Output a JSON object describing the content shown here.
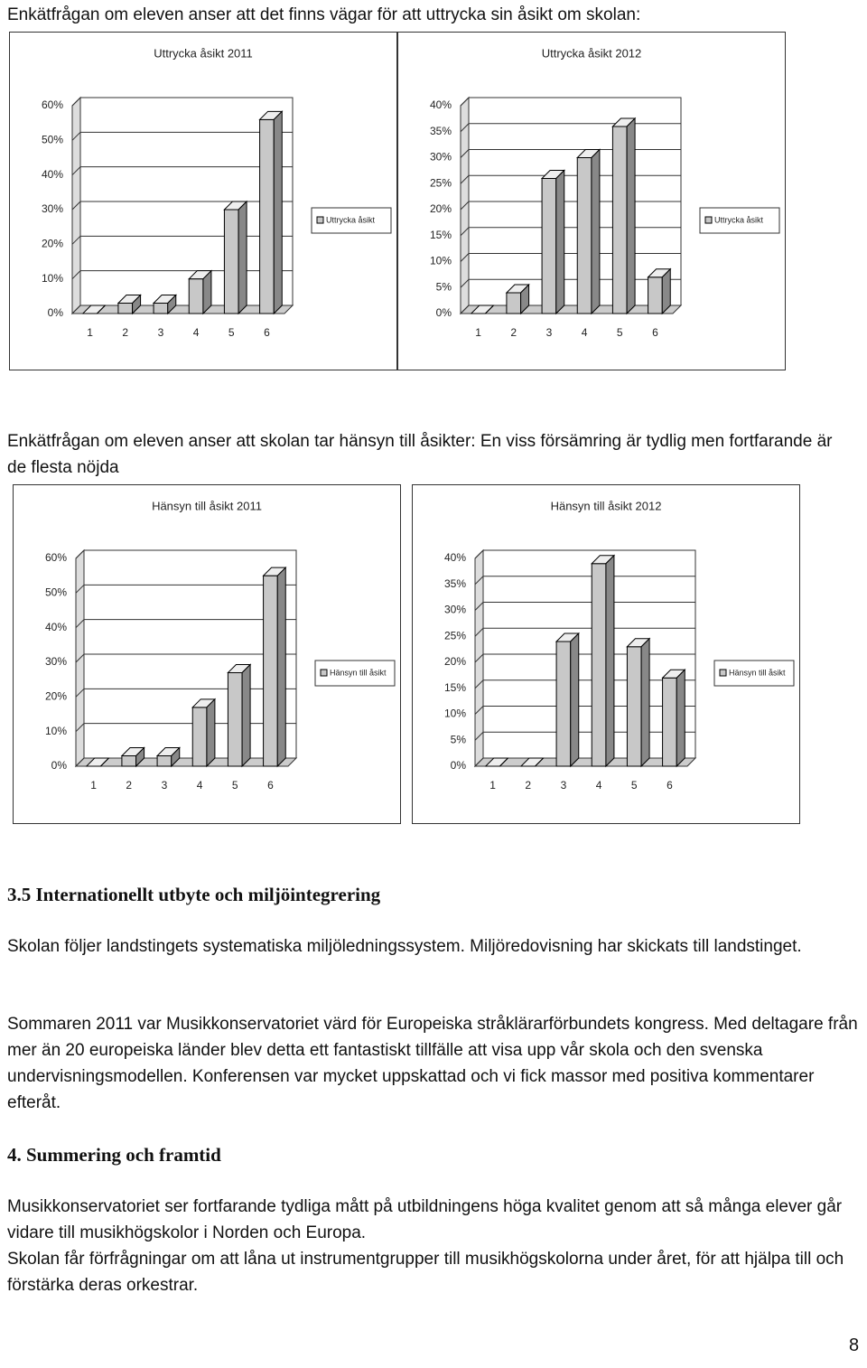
{
  "heading1": "Enkätfrågan om eleven anser att det finns vägar för att uttrycka sin åsikt om skolan:",
  "charts": [
    {
      "type": "bar",
      "title": "Uttrycka åsikt 2011",
      "legend": "Uttrycka åsikt",
      "categories": [
        "1",
        "2",
        "3",
        "4",
        "5",
        "6"
      ],
      "values": [
        0,
        3,
        3,
        10,
        30,
        56
      ],
      "ylim": [
        0,
        60
      ],
      "yticks": [
        {
          "value": 0,
          "label": "0%"
        },
        {
          "value": 10,
          "label": "10%"
        },
        {
          "value": 20,
          "label": "20%"
        },
        {
          "value": 30,
          "label": "30%"
        },
        {
          "value": 40,
          "label": "40%"
        },
        {
          "value": 50,
          "label": "50%"
        },
        {
          "value": 60,
          "label": "60%"
        }
      ],
      "color": "#c8c8c8",
      "grid": true
    },
    {
      "type": "bar",
      "title": "Uttrycka åsikt 2012",
      "legend": "Uttrycka åsikt",
      "categories": [
        "1",
        "2",
        "3",
        "4",
        "5",
        "6"
      ],
      "values": [
        0,
        4,
        26,
        30,
        36,
        7
      ],
      "ylim": [
        0,
        40
      ],
      "yticks": [
        {
          "value": 0,
          "label": "0%"
        },
        {
          "value": 5,
          "label": "5%"
        },
        {
          "value": 10,
          "label": "10%"
        },
        {
          "value": 15,
          "label": "15%"
        },
        {
          "value": 20,
          "label": "20%"
        },
        {
          "value": 25,
          "label": "25%"
        },
        {
          "value": 30,
          "label": "30%"
        },
        {
          "value": 35,
          "label": "35%"
        },
        {
          "value": 40,
          "label": "40%"
        }
      ],
      "color": "#c8c8c8",
      "grid": true
    }
  ],
  "heading2": "Enkätfrågan om eleven anser att skolan tar hänsyn till åsikter: En viss försämring är tydlig men fortfarande är de flesta nöjda",
  "charts2": [
    {
      "type": "bar",
      "title": "Hänsyn till åsikt 2011",
      "legend": "Hänsyn till åsikt",
      "categories": [
        "1",
        "2",
        "3",
        "4",
        "5",
        "6"
      ],
      "values": [
        0,
        3,
        3,
        17,
        27,
        55
      ],
      "ylim": [
        0,
        60
      ],
      "yticks": [
        {
          "value": 0,
          "label": "0%"
        },
        {
          "value": 10,
          "label": "10%"
        },
        {
          "value": 20,
          "label": "20%"
        },
        {
          "value": 30,
          "label": "30%"
        },
        {
          "value": 40,
          "label": "40%"
        },
        {
          "value": 50,
          "label": "50%"
        },
        {
          "value": 60,
          "label": "60%"
        }
      ],
      "color": "#c8c8c8",
      "grid": true
    },
    {
      "type": "bar",
      "title": "Hänsyn till åsikt 2012",
      "legend": "Hänsyn till åsikt",
      "categories": [
        "1",
        "2",
        "3",
        "4",
        "5",
        "6"
      ],
      "values": [
        0,
        0,
        24,
        39,
        23,
        17
      ],
      "ylim": [
        0,
        40
      ],
      "yticks": [
        {
          "value": 0,
          "label": "0%"
        },
        {
          "value": 5,
          "label": "5%"
        },
        {
          "value": 10,
          "label": "10%"
        },
        {
          "value": 15,
          "label": "15%"
        },
        {
          "value": 20,
          "label": "20%"
        },
        {
          "value": 25,
          "label": "25%"
        },
        {
          "value": 30,
          "label": "30%"
        },
        {
          "value": 35,
          "label": "35%"
        },
        {
          "value": 40,
          "label": "40%"
        }
      ],
      "color": "#c8c8c8",
      "grid": true
    }
  ],
  "section1": {
    "title": "3.5 Internationellt utbyte och miljöintegrering",
    "paragraphs": [
      "Skolan följer landstingets systematiska miljöledningssystem. Miljöredovisning har skickats till landstinget.",
      "Sommaren 2011 var Musikkonservatoriet värd för Europeiska stråklärarförbundets kongress. Med deltagare från mer än 20 europeiska länder blev detta ett fantastiskt tillfälle att visa upp vår skola och den svenska undervisningsmodellen. Konferensen var mycket uppskattad och vi fick massor med positiva kommentarer efteråt."
    ]
  },
  "section2": {
    "title": "4. Summering och framtid",
    "paragraphs": [
      "Musikkonservatoriet ser fortfarande tydliga mått på utbildningens höga kvalitet genom att så många elever går vidare till musikhögskolor i Norden och Europa.",
      "Skolan får förfrågningar om att låna ut instrumentgrupper till musikhögskolorna under året, för att hjälpa till och förstärka deras orkestrar."
    ]
  },
  "page_number": "8"
}
